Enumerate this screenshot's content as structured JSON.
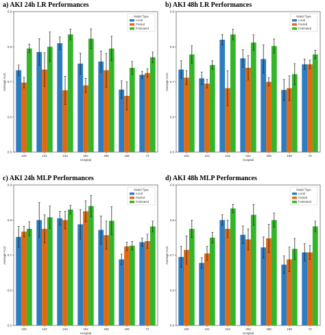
{
  "colors": {
    "Local": "#2e7cc1",
    "Pooled": "#e06a12",
    "Federated": "#34b52a",
    "errorbar": "#222222"
  },
  "chart_data": [
    {
      "type": "bar",
      "title": "a) AKI 24h LR Performances",
      "xlabel": "Hospital",
      "ylabel": "Average AUC",
      "ylim": [
        0.5,
        0.9
      ],
      "yticks": [
        "0.5",
        "0.6",
        "0.7",
        "0.8",
        "0.9"
      ],
      "legend_title": "Model Type",
      "legend_position": "top-right",
      "categories": [
        "420",
        "122",
        "243",
        "252",
        "458",
        "199",
        "73"
      ],
      "series": [
        {
          "name": "Local",
          "values": [
            0.733,
            0.785,
            0.81,
            0.752,
            0.758,
            0.678,
            0.72
          ],
          "errors": [
            0.015,
            0.038,
            0.018,
            0.03,
            0.03,
            0.025,
            0.01
          ]
        },
        {
          "name": "Pooled",
          "values": [
            0.698,
            0.735,
            0.676,
            0.69,
            0.733,
            0.66,
            0.725
          ],
          "errors": [
            0.015,
            0.048,
            0.04,
            0.02,
            0.048,
            0.04,
            0.012
          ]
        },
        {
          "name": "Federated",
          "values": [
            0.795,
            0.8,
            0.835,
            0.823,
            0.795,
            0.74,
            0.77
          ],
          "errors": [
            0.012,
            0.042,
            0.015,
            0.028,
            0.035,
            0.018,
            0.015
          ]
        }
      ]
    },
    {
      "type": "bar",
      "title": "b) AKI 48h LR Performances",
      "xlabel": "Hospital",
      "ylabel": "Average AUC",
      "ylim": [
        0.5,
        0.9
      ],
      "yticks": [
        "0.5",
        "0.6",
        "0.7",
        "0.8",
        "0.9"
      ],
      "legend_title": "Model Type",
      "legend_position": "top-right",
      "categories": [
        "420",
        "122",
        "243",
        "252",
        "458",
        "199",
        "73"
      ],
      "series": [
        {
          "name": "Local",
          "values": [
            0.735,
            0.71,
            0.82,
            0.767,
            0.765,
            0.677,
            0.75
          ],
          "errors": [
            0.025,
            0.018,
            0.015,
            0.025,
            0.04,
            0.03,
            0.015
          ]
        },
        {
          "name": "Pooled",
          "values": [
            0.712,
            0.695,
            0.682,
            0.74,
            0.7,
            0.682,
            0.75
          ],
          "errors": [
            0.02,
            0.012,
            0.05,
            0.035,
            0.012,
            0.035,
            0.012
          ]
        },
        {
          "name": "Federated",
          "values": [
            0.778,
            0.748,
            0.835,
            0.812,
            0.802,
            0.722,
            0.778
          ],
          "errors": [
            0.025,
            0.012,
            0.015,
            0.022,
            0.02,
            0.03,
            0.012
          ]
        }
      ]
    },
    {
      "type": "bar",
      "title": "c) AKI 24h MLP Performances",
      "xlabel": "Hospital",
      "ylabel": "Average AUC",
      "ylim": [
        0.5,
        0.9
      ],
      "yticks": [
        "0.5",
        "0.6",
        "0.7",
        "0.8",
        "0.9"
      ],
      "legend_title": "Model Type",
      "legend_position": "top-right",
      "categories": [
        "420",
        "122",
        "243",
        "252",
        "458",
        "199",
        "73"
      ],
      "series": [
        {
          "name": "Local",
          "values": [
            0.752,
            0.8,
            0.805,
            0.788,
            0.772,
            0.688,
            0.737
          ],
          "errors": [
            0.03,
            0.05,
            0.02,
            0.042,
            0.04,
            0.015,
            0.012
          ]
        },
        {
          "name": "Pooled",
          "values": [
            0.767,
            0.775,
            0.8,
            0.825,
            0.757,
            0.725,
            0.74
          ],
          "errors": [
            0.015,
            0.04,
            0.025,
            0.03,
            0.04,
            0.012,
            0.02
          ]
        },
        {
          "name": "Federated",
          "values": [
            0.775,
            0.808,
            0.83,
            0.84,
            0.798,
            0.727,
            0.782
          ],
          "errors": [
            0.02,
            0.032,
            0.012,
            0.03,
            0.04,
            0.012,
            0.015
          ]
        }
      ]
    },
    {
      "type": "bar",
      "title": "d) AKI 48h MLP Performances",
      "xlabel": "Hospital",
      "ylabel": "Average AUC",
      "ylim": [
        0.5,
        0.9
      ],
      "yticks": [
        "0.5",
        "0.6",
        "0.7",
        "0.8",
        "0.9"
      ],
      "legend_title": "Model Type",
      "legend_position": "top-right",
      "categories": [
        "420",
        "122",
        "243",
        "252",
        "458",
        "199",
        "73"
      ],
      "series": [
        {
          "name": "Local",
          "values": [
            0.695,
            0.678,
            0.8,
            0.758,
            0.722,
            0.673,
            0.708
          ],
          "errors": [
            0.03,
            0.015,
            0.015,
            0.025,
            0.03,
            0.025,
            0.025
          ]
        },
        {
          "name": "Pooled",
          "values": [
            0.715,
            0.705,
            0.775,
            0.745,
            0.748,
            0.688,
            0.708
          ],
          "errors": [
            0.04,
            0.02,
            0.025,
            0.03,
            0.04,
            0.035,
            0.02
          ]
        },
        {
          "name": "Federated",
          "values": [
            0.775,
            0.75,
            0.833,
            0.815,
            0.8,
            0.718,
            0.782
          ],
          "errors": [
            0.025,
            0.015,
            0.012,
            0.03,
            0.02,
            0.03,
            0.015
          ]
        }
      ]
    }
  ]
}
